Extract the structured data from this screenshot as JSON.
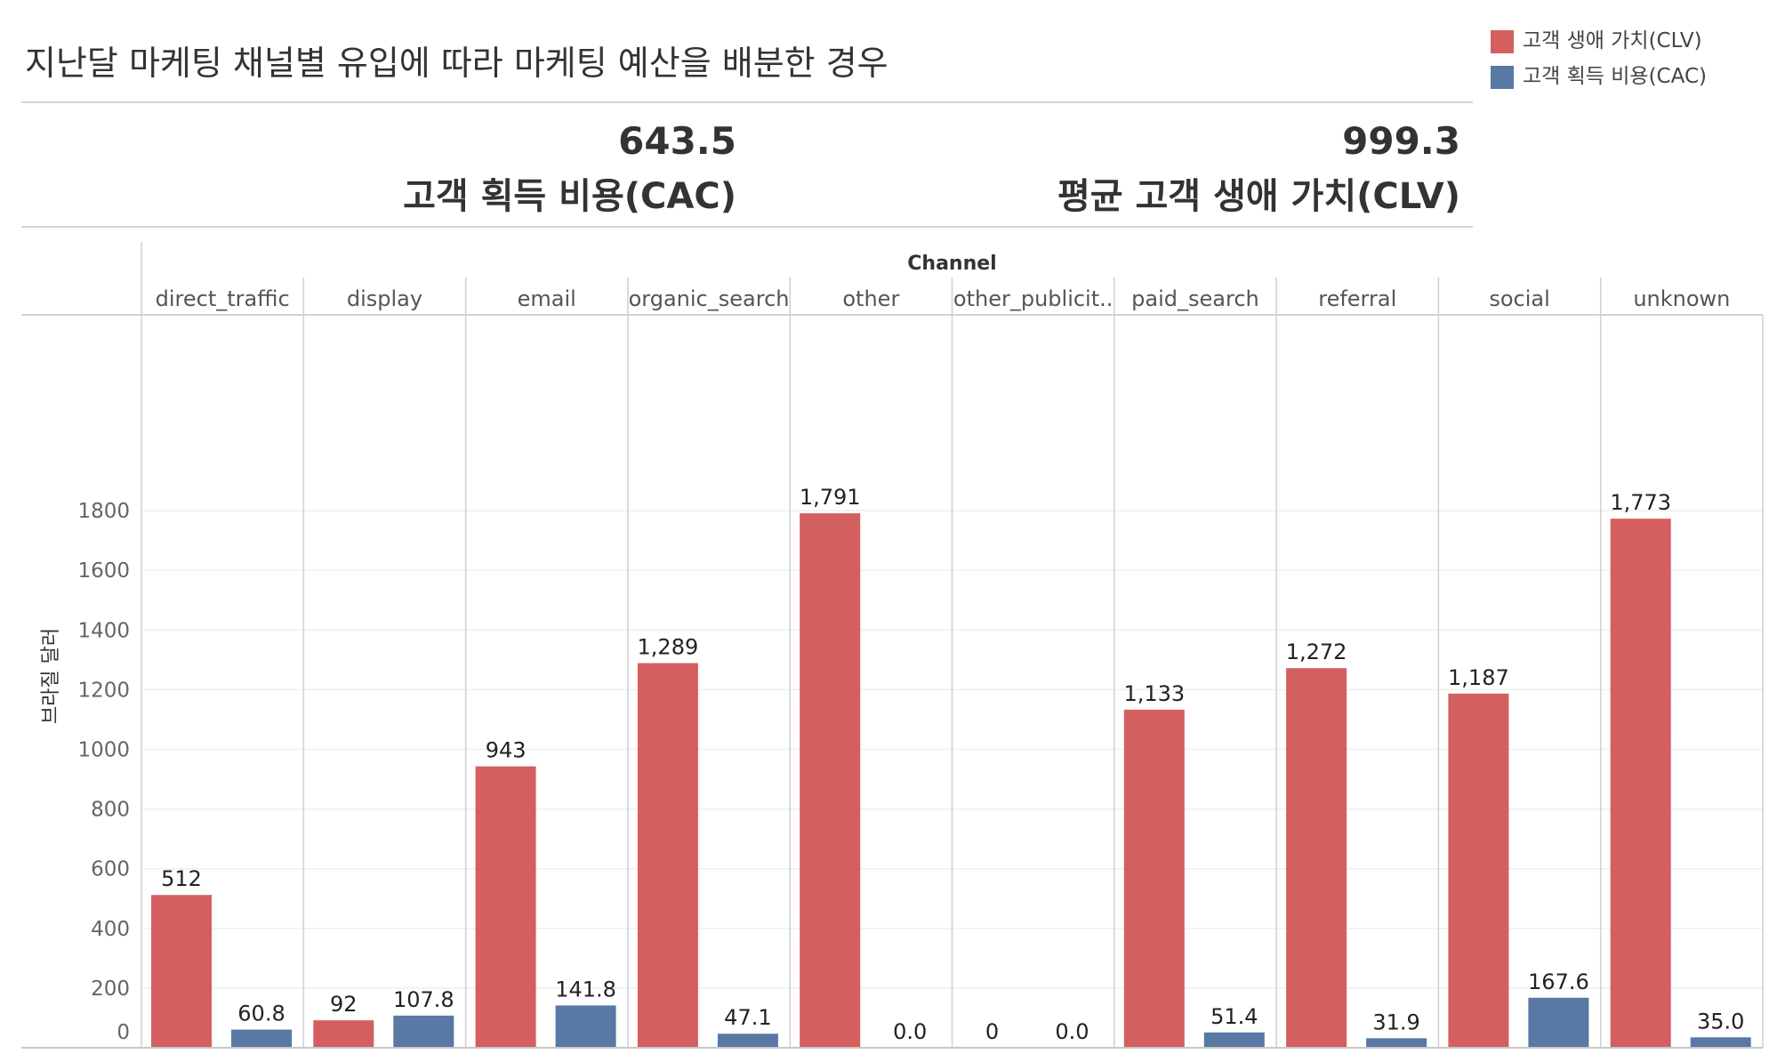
{
  "title": "지난달 마케팅 채널별 유입에 따라 마케팅 예산을 배분한 경우",
  "legend": [
    {
      "label": "고객 생애 가치(CLV)",
      "color": "#d35f5f"
    },
    {
      "label": "고객 획득 비용(CAC)",
      "color": "#5779a4"
    }
  ],
  "kpis": {
    "cac": {
      "value": "643.5",
      "label": "고객 획득 비용(CAC)"
    },
    "clv": {
      "value": "999.3",
      "label": "평균 고객 생애 가치(CLV)"
    }
  },
  "chart_data": {
    "type": "bar",
    "header": "Channel",
    "ylabel": "브라질 달러",
    "ylim": [
      0,
      1950
    ],
    "yticks": [
      0,
      200,
      400,
      600,
      800,
      1000,
      1200,
      1400,
      1600,
      1800
    ],
    "grid": true,
    "categories": [
      "direct_traffic",
      "display",
      "email",
      "organic_search",
      "other",
      "other_publicit..",
      "paid_search",
      "referral",
      "social",
      "unknown"
    ],
    "series": [
      {
        "name": "고객 생애 가치(CLV)",
        "color": "#d35f5f",
        "values": [
          512,
          92,
          943,
          1289,
          1791,
          0,
          1133,
          1272,
          1187,
          1773
        ],
        "labels": [
          "512",
          "92",
          "943",
          "1,289",
          "1,791",
          "0",
          "1,133",
          "1,272",
          "1,187",
          "1,773"
        ]
      },
      {
        "name": "고객 획득 비용(CAC)",
        "color": "#5779a4",
        "values": [
          60.8,
          107.8,
          141.8,
          47.1,
          0.0,
          0.0,
          51.4,
          31.9,
          167.6,
          35.0
        ],
        "labels": [
          "60.8",
          "107.8",
          "141.8",
          "47.1",
          "0.0",
          "0.0",
          "51.4",
          "31.9",
          "167.6",
          "35.0"
        ]
      }
    ]
  }
}
